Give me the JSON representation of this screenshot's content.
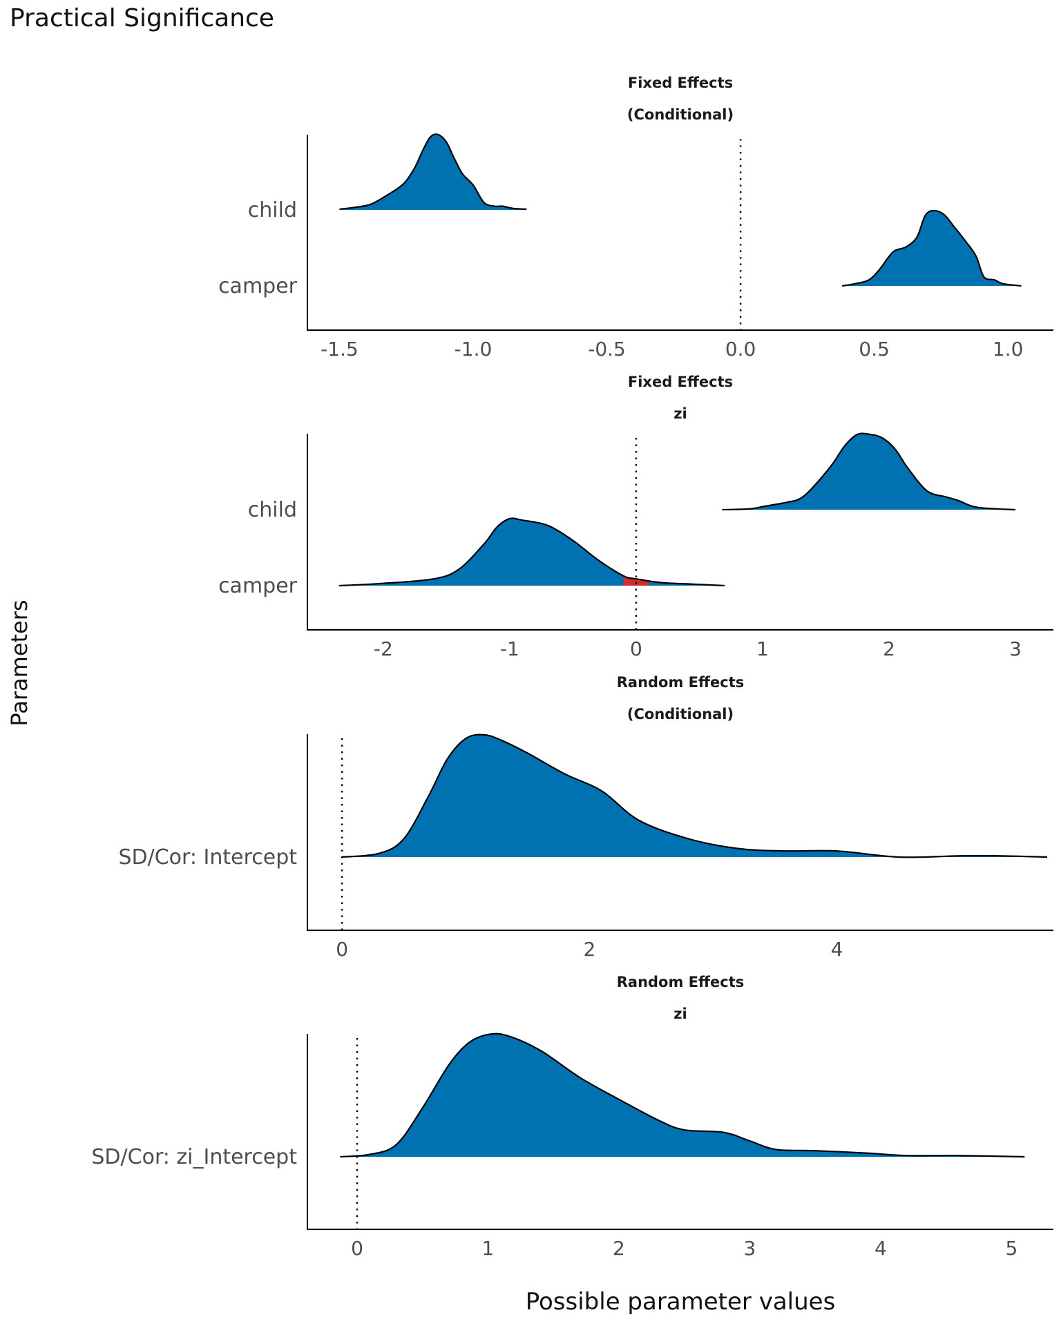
{
  "title": "Practical Significance",
  "ylabel": "Parameters",
  "xlabel": "Possible parameter values",
  "colors": {
    "fill": "#0072B2",
    "rope": "#D22B2B",
    "line": "#000000"
  },
  "chart_data": [
    {
      "type": "area",
      "strip": [
        "Fixed Effects",
        "(Conditional)"
      ],
      "xlim": [
        -1.62,
        1.17
      ],
      "xticks": [
        -1.5,
        -1.0,
        -0.5,
        0.0,
        0.5,
        1.0
      ],
      "tick_labels": [
        "-1.5",
        "-1.0",
        "-0.5",
        "0.0",
        "0.5",
        "1.0"
      ],
      "vline": 0,
      "parameters": [
        {
          "name": "child",
          "points": [
            [
              -1.5,
              0.01
            ],
            [
              -1.43,
              0.04
            ],
            [
              -1.38,
              0.08
            ],
            [
              -1.32,
              0.2
            ],
            [
              -1.26,
              0.35
            ],
            [
              -1.22,
              0.55
            ],
            [
              -1.19,
              0.78
            ],
            [
              -1.16,
              0.97
            ],
            [
              -1.13,
              1.0
            ],
            [
              -1.1,
              0.9
            ],
            [
              -1.07,
              0.68
            ],
            [
              -1.04,
              0.48
            ],
            [
              -1.0,
              0.33
            ],
            [
              -0.96,
              0.1
            ],
            [
              -0.92,
              0.05
            ],
            [
              -0.89,
              0.05
            ],
            [
              -0.85,
              0.02
            ],
            [
              -0.8,
              0.01
            ]
          ]
        },
        {
          "name": "camper",
          "points": [
            [
              0.38,
              0.0
            ],
            [
              0.43,
              0.03
            ],
            [
              0.48,
              0.08
            ],
            [
              0.52,
              0.22
            ],
            [
              0.57,
              0.45
            ],
            [
              0.62,
              0.52
            ],
            [
              0.66,
              0.65
            ],
            [
              0.69,
              0.93
            ],
            [
              0.72,
              1.0
            ],
            [
              0.76,
              0.95
            ],
            [
              0.8,
              0.78
            ],
            [
              0.84,
              0.6
            ],
            [
              0.88,
              0.4
            ],
            [
              0.91,
              0.12
            ],
            [
              0.95,
              0.08
            ],
            [
              0.98,
              0.03
            ],
            [
              1.05,
              0.0
            ]
          ]
        }
      ],
      "rope": []
    },
    {
      "type": "area",
      "strip": [
        "Fixed Effects",
        "zi"
      ],
      "xlim": [
        -2.6,
        3.3
      ],
      "xticks": [
        -2,
        -1,
        0,
        1,
        2,
        3
      ],
      "tick_labels": [
        "-2",
        "-1",
        "0",
        "1",
        "2",
        "3"
      ],
      "vline": 0,
      "parameters": [
        {
          "name": "child",
          "points": [
            [
              0.68,
              0.0
            ],
            [
              0.9,
              0.01
            ],
            [
              1.0,
              0.04
            ],
            [
              1.2,
              0.1
            ],
            [
              1.3,
              0.15
            ],
            [
              1.4,
              0.3
            ],
            [
              1.55,
              0.6
            ],
            [
              1.65,
              0.85
            ],
            [
              1.75,
              1.0
            ],
            [
              1.85,
              1.0
            ],
            [
              1.95,
              0.95
            ],
            [
              2.05,
              0.8
            ],
            [
              2.15,
              0.55
            ],
            [
              2.3,
              0.25
            ],
            [
              2.45,
              0.17
            ],
            [
              2.55,
              0.12
            ],
            [
              2.7,
              0.03
            ],
            [
              3.0,
              0.0
            ]
          ]
        },
        {
          "name": "camper",
          "points": [
            [
              -2.35,
              0.0
            ],
            [
              -2.0,
              0.03
            ],
            [
              -1.6,
              0.09
            ],
            [
              -1.4,
              0.22
            ],
            [
              -1.2,
              0.56
            ],
            [
              -1.1,
              0.78
            ],
            [
              -1.0,
              0.89
            ],
            [
              -0.9,
              0.87
            ],
            [
              -0.7,
              0.8
            ],
            [
              -0.5,
              0.6
            ],
            [
              -0.3,
              0.34
            ],
            [
              -0.1,
              0.13
            ],
            [
              0.0,
              0.09
            ],
            [
              0.2,
              0.04
            ],
            [
              0.45,
              0.02
            ],
            [
              0.7,
              0.0
            ]
          ]
        }
      ],
      "rope": [
        {
          "parameter": "camper",
          "range": [
            -0.1,
            0.1
          ]
        }
      ]
    },
    {
      "type": "area",
      "strip": [
        "Random Effects",
        "(Conditional)"
      ],
      "xlim": [
        -0.28,
        5.75
      ],
      "xticks": [
        0,
        2,
        4
      ],
      "tick_labels": [
        "0",
        "2",
        "4"
      ],
      "vline": 0,
      "parameters": [
        {
          "name": "SD/Cor:  Intercept",
          "points": [
            [
              0.0,
              0.0
            ],
            [
              0.3,
              0.03
            ],
            [
              0.5,
              0.15
            ],
            [
              0.7,
              0.5
            ],
            [
              0.85,
              0.8
            ],
            [
              1.0,
              0.97
            ],
            [
              1.15,
              1.0
            ],
            [
              1.3,
              0.95
            ],
            [
              1.5,
              0.85
            ],
            [
              1.8,
              0.68
            ],
            [
              2.1,
              0.54
            ],
            [
              2.4,
              0.3
            ],
            [
              2.8,
              0.15
            ],
            [
              3.2,
              0.07
            ],
            [
              3.6,
              0.05
            ],
            [
              4.0,
              0.05
            ],
            [
              4.5,
              0.0
            ],
            [
              5.0,
              0.01
            ],
            [
              5.3,
              0.01
            ],
            [
              5.7,
              0.0
            ]
          ]
        }
      ],
      "rope": []
    },
    {
      "type": "area",
      "strip": [
        "Random Effects",
        "zi"
      ],
      "xlim": [
        -0.38,
        5.32
      ],
      "xticks": [
        0,
        1,
        2,
        3,
        4,
        5
      ],
      "tick_labels": [
        "0",
        "1",
        "2",
        "3",
        "4",
        "5"
      ],
      "vline": 0,
      "parameters": [
        {
          "name": "SD/Cor:  zi_Intercept",
          "points": [
            [
              -0.13,
              0.0
            ],
            [
              0.1,
              0.02
            ],
            [
              0.3,
              0.1
            ],
            [
              0.5,
              0.4
            ],
            [
              0.7,
              0.75
            ],
            [
              0.85,
              0.93
            ],
            [
              1.0,
              1.0
            ],
            [
              1.15,
              0.99
            ],
            [
              1.4,
              0.87
            ],
            [
              1.7,
              0.65
            ],
            [
              2.0,
              0.47
            ],
            [
              2.3,
              0.3
            ],
            [
              2.5,
              0.22
            ],
            [
              2.8,
              0.2
            ],
            [
              3.0,
              0.13
            ],
            [
              3.2,
              0.06
            ],
            [
              3.5,
              0.05
            ],
            [
              3.9,
              0.03
            ],
            [
              4.2,
              0.01
            ],
            [
              4.6,
              0.01
            ],
            [
              5.1,
              0.0
            ]
          ]
        }
      ],
      "rope": []
    }
  ]
}
